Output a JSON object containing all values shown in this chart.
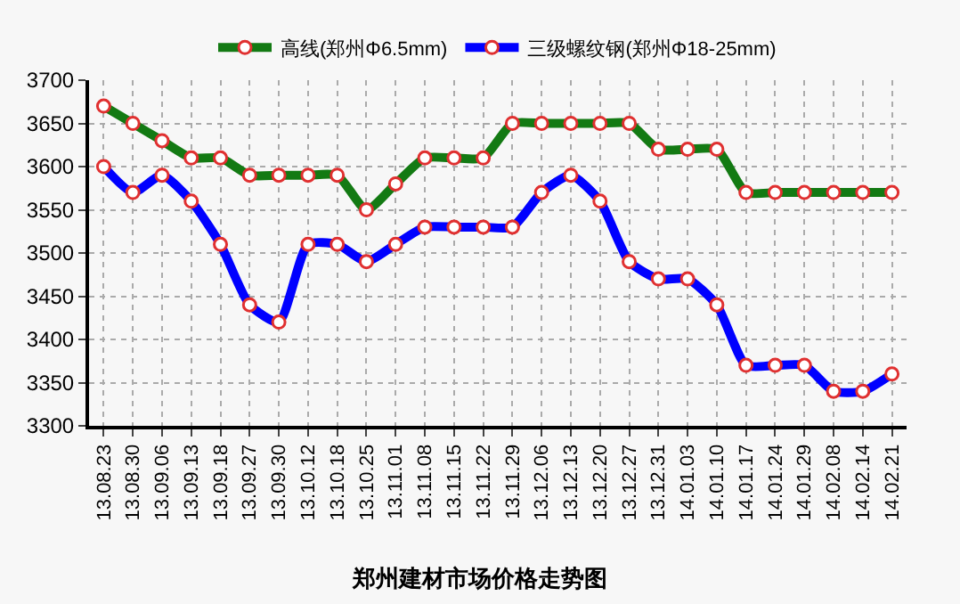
{
  "chart_data": {
    "type": "line",
    "title": "郑州建材市场价格走势图",
    "categories": [
      "13.08.23",
      "13.08.30",
      "13.09.06",
      "13.09.13",
      "13.09.18",
      "13.09.27",
      "13.09.30",
      "13.10.12",
      "13.10.18",
      "13.10.25",
      "13.11.01",
      "13.11.08",
      "13.11.15",
      "13.11.22",
      "13.11.29",
      "13.12.06",
      "13.12.13",
      "13.12.20",
      "13.12.27",
      "13.12.31",
      "14.01.03",
      "14.01.10",
      "14.01.17",
      "14.01.24",
      "14.01.29",
      "14.02.08",
      "14.02.14",
      "14.02.21"
    ],
    "series": [
      {
        "name": "高线(郑州Φ6.5mm)",
        "color": "#137a13",
        "values": [
          3670,
          3650,
          3630,
          3610,
          3610,
          3590,
          3590,
          3590,
          3590,
          3550,
          3580,
          3610,
          3610,
          3610,
          3650,
          3650,
          3650,
          3650,
          3650,
          3620,
          3620,
          3620,
          3570,
          3570,
          3570,
          3570,
          3570,
          3570
        ]
      },
      {
        "name": "三级螺纹钢(郑州Φ18-25mm)",
        "color": "#0000ff",
        "values": [
          3600,
          3570,
          3590,
          3560,
          3510,
          3440,
          3420,
          3510,
          3510,
          3490,
          3510,
          3530,
          3530,
          3530,
          3530,
          3570,
          3590,
          3560,
          3490,
          3470,
          3470,
          3440,
          3370,
          3370,
          3370,
          3340,
          3340,
          3360
        ]
      }
    ],
    "ylim": [
      3300,
      3700
    ],
    "yticks": [
      3300,
      3350,
      3400,
      3450,
      3500,
      3550,
      3600,
      3650,
      3700
    ],
    "grid": true,
    "legend": "top",
    "marker": "circle",
    "line_style": "solid"
  }
}
